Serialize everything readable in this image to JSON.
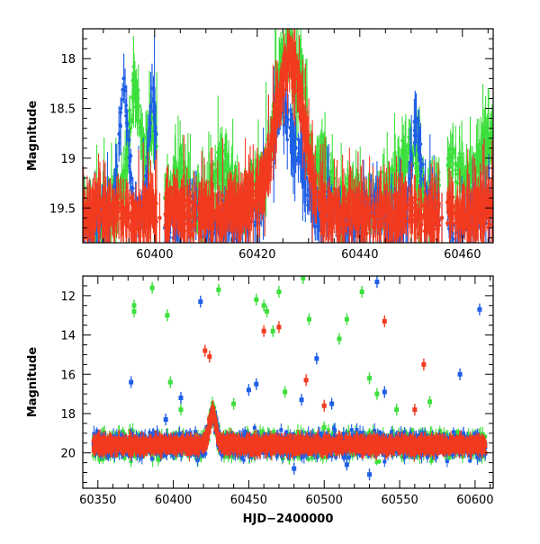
{
  "chart_data": [
    {
      "type": "scatter",
      "title": "",
      "xlabel": "",
      "ylabel": "Magnitude",
      "xlim": [
        60386,
        60466
      ],
      "ylim": [
        19.85,
        17.7
      ],
      "y_inverted": true,
      "xticks": [
        60400,
        60420,
        60440,
        60460
      ],
      "yticks": [
        18,
        18.5,
        19,
        19.5
      ],
      "ytick_labels": [
        "18",
        "18.5",
        "19",
        "19.5"
      ],
      "colors": {
        "green": "#3ddf3d",
        "blue": "#1f5fe6",
        "red": "#f23a1f"
      },
      "series": [
        {
          "color": "green",
          "points": [
            [
              60388,
              19.6
            ],
            [
              60391,
              19.5
            ],
            [
              60394,
              19.3
            ],
            [
              60396,
              18.2
            ],
            [
              60398,
              19.0
            ],
            [
              60399.5,
              18.6
            ],
            [
              60402,
              19.4
            ],
            [
              60405,
              19.1
            ],
            [
              60409,
              19.5
            ],
            [
              60411,
              19.3
            ],
            [
              60413,
              19.0
            ],
            [
              60415,
              19.2
            ],
            [
              60417,
              19.5
            ],
            [
              60419,
              19.3
            ],
            [
              60421,
              19.2
            ],
            [
              60422.5,
              18.9
            ],
            [
              60423.5,
              18.3
            ],
            [
              60424.5,
              18.1
            ],
            [
              60425.5,
              17.9
            ],
            [
              60426.5,
              17.85
            ],
            [
              60427,
              18.05
            ],
            [
              60427.8,
              18.3
            ],
            [
              60428.5,
              18.0
            ],
            [
              60429.5,
              18.6
            ],
            [
              60431,
              19.2
            ],
            [
              60433,
              19.0
            ],
            [
              60436,
              19.5
            ],
            [
              60438,
              19.3
            ],
            [
              60441,
              19.5
            ],
            [
              60445,
              19.4
            ],
            [
              60447,
              19.2
            ],
            [
              60450,
              18.9
            ],
            [
              60453,
              19.5
            ],
            [
              60458,
              19.0
            ],
            [
              60461,
              19.3
            ],
            [
              60464,
              18.9
            ],
            [
              60465.5,
              18.8
            ]
          ]
        },
        {
          "color": "blue",
          "points": [
            [
              60388,
              19.7
            ],
            [
              60390,
              19.6
            ],
            [
              60392,
              19.5
            ],
            [
              60394,
              18.2
            ],
            [
              60396,
              19.6
            ],
            [
              60398,
              19.5
            ],
            [
              60399.5,
              18.3
            ],
            [
              60402,
              19.7
            ],
            [
              60405,
              19.6
            ],
            [
              60408,
              19.5
            ],
            [
              60411,
              19.7
            ],
            [
              60413,
              19.6
            ],
            [
              60416,
              19.7
            ],
            [
              60418,
              19.5
            ],
            [
              60420,
              19.6
            ],
            [
              60421.5,
              19.2
            ],
            [
              60422.5,
              19.0
            ],
            [
              60423.5,
              18.7
            ],
            [
              60424.5,
              18.4
            ],
            [
              60425.5,
              18.5
            ],
            [
              60426.5,
              18.7
            ],
            [
              60427.5,
              18.9
            ],
            [
              60428.5,
              19.0
            ],
            [
              60429.5,
              19.2
            ],
            [
              60430.5,
              19.4
            ],
            [
              60432,
              19.6
            ],
            [
              60434,
              19.5
            ],
            [
              60437,
              19.7
            ],
            [
              60440,
              19.6
            ],
            [
              60443,
              19.5
            ],
            [
              60446,
              19.7
            ],
            [
              60449,
              19.6
            ],
            [
              60451,
              18.6
            ],
            [
              60453,
              19.5
            ],
            [
              60456,
              19.6
            ],
            [
              60458,
              19.7
            ],
            [
              60461,
              19.6
            ],
            [
              60464,
              19.5
            ]
          ]
        },
        {
          "color": "red",
          "points": [
            [
              60387,
              19.6
            ],
            [
              60389,
              19.5
            ],
            [
              60391,
              19.6
            ],
            [
              60393,
              19.5
            ],
            [
              60395,
              19.6
            ],
            [
              60397,
              19.6
            ],
            [
              60399,
              19.5
            ],
            [
              60401,
              19.6
            ],
            [
              60404,
              19.5
            ],
            [
              60407,
              19.6
            ],
            [
              60410,
              19.5
            ],
            [
              60412,
              19.6
            ],
            [
              60415,
              19.5
            ],
            [
              60417,
              19.5
            ],
            [
              60419,
              19.4
            ],
            [
              60421,
              19.3
            ],
            [
              60422.5,
              19.0
            ],
            [
              60423.5,
              18.6
            ],
            [
              60424.5,
              18.35
            ],
            [
              60425.5,
              18.1
            ],
            [
              60426.2,
              17.95
            ],
            [
              60427,
              18.05
            ],
            [
              60427.8,
              18.2
            ],
            [
              60428.5,
              18.4
            ],
            [
              60429.5,
              18.8
            ],
            [
              60431,
              19.3
            ],
            [
              60433,
              19.5
            ],
            [
              60436,
              19.6
            ],
            [
              60438,
              19.5
            ],
            [
              60441,
              19.6
            ],
            [
              60444,
              19.5
            ],
            [
              60446,
              19.6
            ],
            [
              60449,
              19.5
            ],
            [
              60452,
              19.6
            ],
            [
              60456,
              19.6
            ],
            [
              60458,
              19.5
            ],
            [
              60461,
              19.6
            ],
            [
              60464,
              19.5
            ]
          ]
        }
      ]
    },
    {
      "type": "scatter",
      "title": "",
      "xlabel": "HJD−2400000",
      "ylabel": "Magnitude",
      "xlim": [
        60340,
        60612
      ],
      "ylim": [
        21.8,
        11.0
      ],
      "y_inverted": true,
      "xticks": [
        60350,
        60400,
        60450,
        60500,
        60550,
        60600
      ],
      "yticks": [
        12,
        14,
        16,
        18,
        20
      ],
      "ytick_labels": [
        "12",
        "14",
        "16",
        "18",
        "20"
      ],
      "colors": {
        "green": "#3ddf3d",
        "blue": "#1f5fe6",
        "red": "#f23a1f"
      },
      "series": [
        {
          "color": "green",
          "points": [
            [
              60374,
              12.5
            ],
            [
              60374,
              12.8
            ],
            [
              60386,
              11.6
            ],
            [
              60396,
              13.0
            ],
            [
              60398,
              16.4
            ],
            [
              60405,
              17.8
            ],
            [
              60430,
              11.7
            ],
            [
              60440,
              17.5
            ],
            [
              60455,
              12.2
            ],
            [
              60460,
              12.5
            ],
            [
              60462,
              12.8
            ],
            [
              60466,
              13.8
            ],
            [
              60470,
              11.8
            ],
            [
              60474,
              16.9
            ],
            [
              60486,
              11.1
            ],
            [
              60490,
              13.2
            ],
            [
              60500,
              18.7
            ],
            [
              60510,
              14.2
            ],
            [
              60515,
              13.2
            ],
            [
              60525,
              11.8
            ],
            [
              60530,
              16.2
            ],
            [
              60535,
              17.0
            ],
            [
              60548,
              17.8
            ],
            [
              60555,
              19.2
            ],
            [
              60570,
              17.4
            ],
            [
              60585,
              19.6
            ],
            [
              60595,
              19.7
            ]
          ]
        },
        {
          "color": "blue",
          "points": [
            [
              60372,
              16.4
            ],
            [
              60395,
              18.3
            ],
            [
              60405,
              17.2
            ],
            [
              60418,
              12.3
            ],
            [
              60450,
              16.8
            ],
            [
              60455,
              16.5
            ],
            [
              60485,
              17.3
            ],
            [
              60495,
              15.2
            ],
            [
              60505,
              17.5
            ],
            [
              60515,
              20.6
            ],
            [
              60535,
              11.3
            ],
            [
              60540,
              16.9
            ],
            [
              60590,
              16.0
            ],
            [
              60603,
              12.7
            ],
            [
              60480,
              20.8
            ],
            [
              60530,
              21.1
            ]
          ]
        },
        {
          "color": "red",
          "points": [
            [
              60421,
              14.8
            ],
            [
              60424,
              15.1
            ],
            [
              60460,
              13.8
            ],
            [
              60470,
              13.6
            ],
            [
              60488,
              16.3
            ],
            [
              60500,
              17.6
            ],
            [
              60540,
              13.3
            ],
            [
              60560,
              17.8
            ],
            [
              60566,
              15.5
            ]
          ]
        }
      ],
      "baseline_magnitude": 19.6,
      "outburst_hjd": 60426,
      "outburst_peak_magnitude": 18.0
    }
  ]
}
